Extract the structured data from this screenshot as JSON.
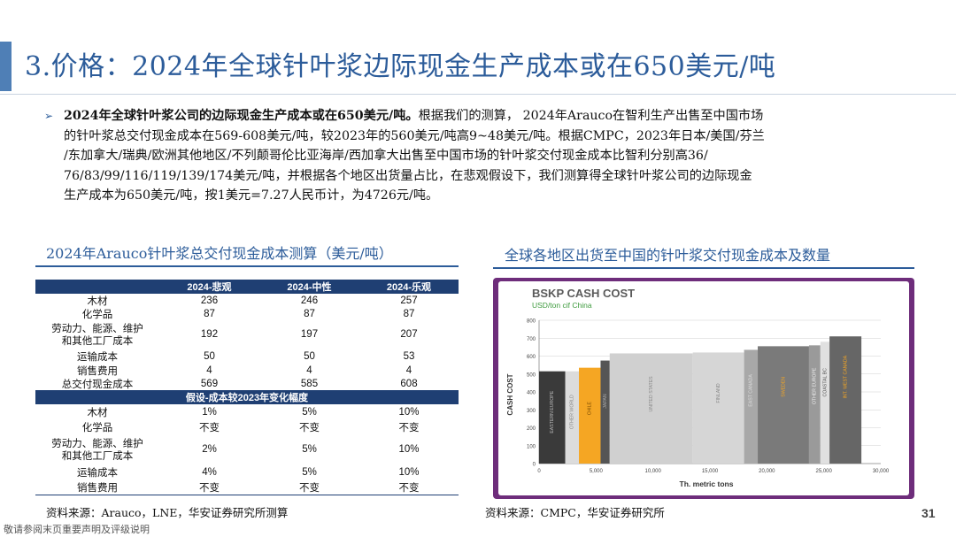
{
  "title": "3.价格：2024年全球针叶浆边际现金生产成本或在650美元/吨",
  "bullet": {
    "lead": "2024年全球针叶浆公司的边际现金生产成本或在650美元/吨。",
    "line1_rest": "根据我们的测算，  2024年Arauco在智利生产出售至中国市场",
    "line2": "的针叶浆总交付现金成本在569-608美元/吨，较2023年的560美元/吨高9~48美元/吨。根据CMPC，2023年日本/美国/芬兰",
    "line3": "/东加拿大/瑞典/欧洲其他地区/不列颠哥伦比亚海岸/西加拿大出售至中国市场的针叶浆交付现金成本比智利分别高36/",
    "line4": "76/83/99/116/119/139/174美元/吨，并根据各个地区出货量占比，在悲观假设下，我们测算得全球针叶浆公司的边际现金",
    "line5": "生产成本为650美元/吨，按1美元=7.27人民币计，为4726元/吨。"
  },
  "left_table": {
    "title": "2024年Arauco针叶浆总交付现金成本测算（美元/吨）",
    "headers": [
      "",
      "2024-悲观",
      "2024-中性",
      "2024-乐观"
    ],
    "rows": [
      {
        "label": "木材",
        "v": [
          "236",
          "246",
          "257"
        ]
      },
      {
        "label": "化学品",
        "v": [
          "87",
          "87",
          "87"
        ]
      },
      {
        "label_a": "劳动力、能源、维护",
        "label_b": "和其他工厂成本",
        "v": [
          "192",
          "197",
          "207"
        ]
      },
      {
        "label": "运输成本",
        "v": [
          "50",
          "50",
          "53"
        ]
      },
      {
        "label": "销售费用",
        "v": [
          "4",
          "4",
          "4"
        ]
      },
      {
        "label": "总交付现金成本",
        "v": [
          "569",
          "585",
          "608"
        ]
      }
    ],
    "subheader": "假设-成本较2023年变化幅度",
    "rows2": [
      {
        "label": "木材",
        "v": [
          "1%",
          "5%",
          "10%"
        ]
      },
      {
        "label": "化学品",
        "v": [
          "不变",
          "不变",
          "不变"
        ]
      },
      {
        "label_a": "劳动力、能源、维护",
        "label_b": "和其他工厂成本",
        "v": [
          "2%",
          "5%",
          "10%"
        ]
      },
      {
        "label": "运输成本",
        "v": [
          "4%",
          "5%",
          "10%"
        ]
      },
      {
        "label": "销售费用",
        "v": [
          "不变",
          "不变",
          "不变"
        ]
      }
    ],
    "source": "资料来源：Arauco，LNE，华安证券研究所测算"
  },
  "right_chart": {
    "title": "全球各地区出货至中国的针叶浆交付现金成本及数量",
    "source": "资料来源：CMPC，华安证券研究所"
  },
  "chart_data": {
    "type": "bar",
    "title": "BSKP CASH COST",
    "subtitle": "USD/ton cif China",
    "xlabel": "Th. metric tons",
    "ylabel": "CASH COST",
    "xlim": [
      0,
      30000
    ],
    "ylim": [
      0,
      800
    ],
    "xticks": [
      "0",
      "5,000",
      "10,000",
      "15,000",
      "20,000",
      "25,000",
      "30,000"
    ],
    "yticks": [
      "0",
      "100",
      "200",
      "300",
      "400",
      "500",
      "600",
      "700",
      "800"
    ],
    "bars": [
      {
        "label": "EASTERN EUROPE",
        "x0": 0,
        "x1": 2300,
        "value": 515,
        "color": "#3a3a3a",
        "text_color": "#bbbbbb"
      },
      {
        "label": "OTHER WORLD",
        "x0": 2300,
        "x1": 3500,
        "value": 515,
        "color": "#dcdcdc",
        "text_color": "#888888"
      },
      {
        "label": "CHILE",
        "x0": 3500,
        "x1": 5400,
        "value": 535,
        "color": "#f5a623",
        "text_color": "#7a4a00"
      },
      {
        "label": "JAPAN",
        "x0": 5400,
        "x1": 6200,
        "value": 575,
        "color": "#555555",
        "text_color": "#aaaaaa"
      },
      {
        "label": "UNITED STATES",
        "x0": 6200,
        "x1": 13500,
        "value": 615,
        "color": "#d0d0d0",
        "text_color": "#888888"
      },
      {
        "label": "FINLAND",
        "x0": 13500,
        "x1": 18000,
        "value": 620,
        "color": "#d6d6d6",
        "text_color": "#888888"
      },
      {
        "label": "EAST CANADA",
        "x0": 18000,
        "x1": 19200,
        "value": 635,
        "color": "#a8a8a8",
        "text_color": "#dddddd"
      },
      {
        "label": "SWEDEN",
        "x0": 19200,
        "x1": 23700,
        "value": 655,
        "color": "#7a7a7a",
        "text_color": "#f5a623"
      },
      {
        "label": "OTHER EUROPE",
        "x0": 23700,
        "x1": 24700,
        "value": 660,
        "color": "#9a9a9a",
        "text_color": "#eeeeee"
      },
      {
        "label": "COASTAL BC",
        "x0": 24700,
        "x1": 25500,
        "value": 680,
        "color": "#e0e0e0",
        "text_color": "#555555"
      },
      {
        "label": "INT. WEST CANADA",
        "x0": 25500,
        "x1": 28300,
        "value": 710,
        "color": "#666666",
        "text_color": "#f5a623"
      }
    ]
  },
  "footer": "敬请参阅末页重要声明及评级说明",
  "page_number": "31"
}
